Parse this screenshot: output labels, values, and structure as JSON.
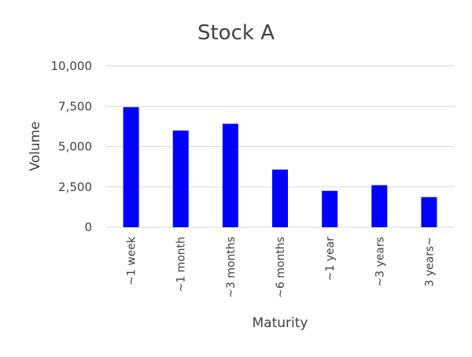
{
  "chart_data": {
    "type": "bar",
    "title": "Stock A",
    "xlabel": "Maturity",
    "ylabel": "Volume",
    "categories": [
      "~1 week",
      "~1 month",
      "~3 months",
      "~6 months",
      "~1 year",
      "~3 years",
      "3 years~"
    ],
    "series": [
      {
        "values": [
          7450,
          6000,
          6420,
          3580,
          2260,
          2610,
          1870
        ]
      }
    ],
    "ylim": [
      0,
      10000
    ],
    "yticks": [
      "0",
      "2,500",
      "5,000",
      "7,500",
      "10,000"
    ],
    "ytick_values": [
      0,
      2500,
      5000,
      7500,
      10000
    ],
    "grid": true,
    "legend": "none",
    "colors": {
      "bar": "#0000ff",
      "grid": "#d9d9d9",
      "text": "#404040"
    }
  }
}
